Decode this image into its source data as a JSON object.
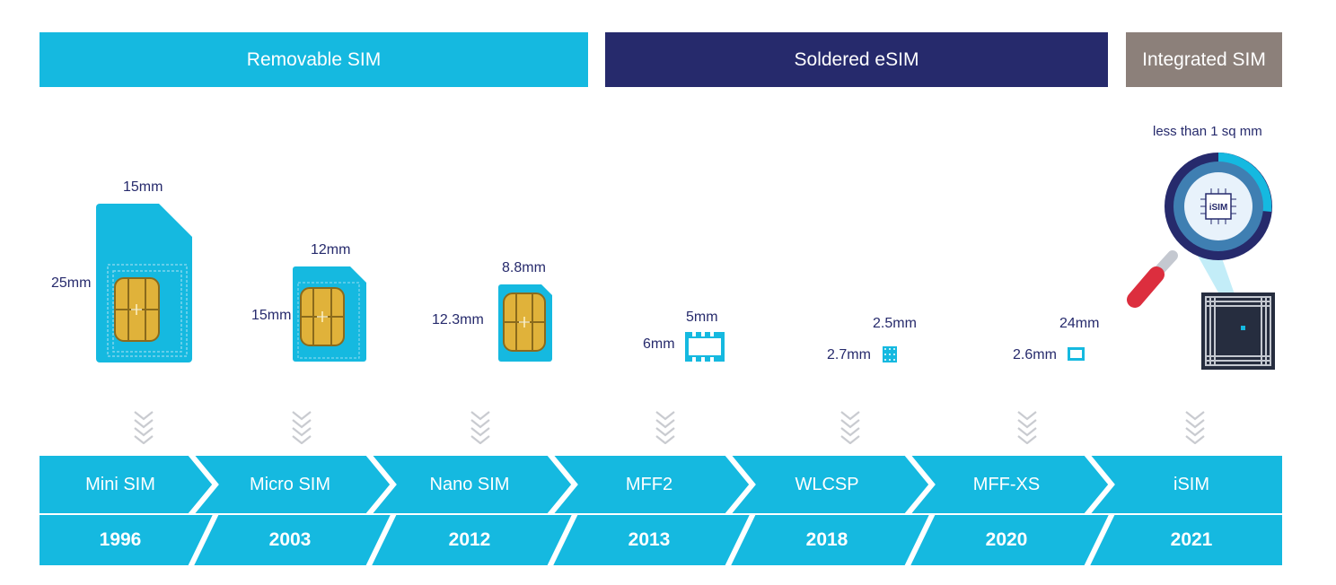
{
  "bands": {
    "removable": "Removable SIM",
    "soldered": "Soldered eSIM",
    "integrated": "Integrated SIM"
  },
  "dimensions": {
    "mini_w": "15mm",
    "mini_h": "25mm",
    "micro_w": "12mm",
    "micro_h": "15mm",
    "nano_w": "8.8mm",
    "nano_h": "12.3mm",
    "mff2_w": "5mm",
    "mff2_h": "6mm",
    "wlcsp_w": "2.5mm",
    "wlcsp_h": "2.7mm",
    "mffxs_w": "24mm",
    "mffxs_h": "2.6mm",
    "isim_note": "less than 1 sq mm"
  },
  "isim_chip_label": "iSIM",
  "timeline": [
    {
      "name": "Mini SIM",
      "year": "1996"
    },
    {
      "name": "Micro SIM",
      "year": "2003"
    },
    {
      "name": "Nano SIM",
      "year": "2012"
    },
    {
      "name": "MFF2",
      "year": "2013"
    },
    {
      "name": "WLCSP",
      "year": "2018"
    },
    {
      "name": "MFF-XS",
      "year": "2020"
    },
    {
      "name": "iSIM",
      "year": "2021"
    }
  ],
  "colors": {
    "cyan": "#15b9e0",
    "navy": "#262a6c",
    "taupe": "#8c807a",
    "chevron": "#c9cbd0",
    "chip_gold": "#e0b23a"
  }
}
